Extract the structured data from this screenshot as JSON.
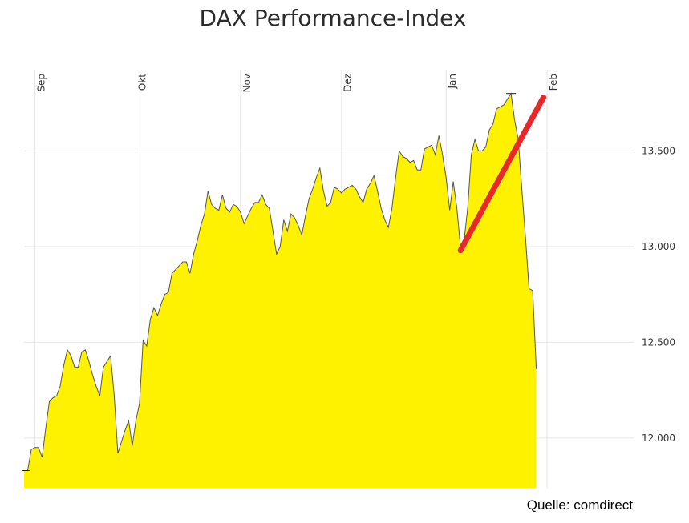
{
  "chart_data": {
    "type": "area",
    "title": "DAX Performance-Index",
    "source": "Quelle: comdirect",
    "x_month_labels": [
      "Sep",
      "Okt",
      "Nov",
      "Dez",
      "Jan",
      "Feb"
    ],
    "y_tick_labels": [
      {
        "value": 12000,
        "label": "12.000"
      },
      {
        "value": 12500,
        "label": "12.500"
      },
      {
        "value": 13000,
        "label": "13.000"
      },
      {
        "value": 13500,
        "label": "13.500"
      }
    ],
    "ylim": [
      11740,
      13920
    ],
    "xlim": [
      0,
      169
    ],
    "grid": true,
    "colors": {
      "fill": "#FFF200",
      "line": "#555555",
      "trend": "#E8282B",
      "grid": "#E6E6E6"
    },
    "month_start_index": [
      3,
      31,
      60,
      88,
      117,
      145
    ],
    "series": [
      {
        "values": [
          11830,
          11830,
          11940,
          11950,
          11950,
          11900,
          12050,
          12190,
          12210,
          12220,
          12270,
          12380,
          12460,
          12430,
          12370,
          12370,
          12450,
          12460,
          12400,
          12330,
          12270,
          12220,
          12370,
          12400,
          12430,
          12220,
          11920,
          11980,
          12040,
          12090,
          11960,
          12090,
          12180,
          12510,
          12480,
          12620,
          12680,
          12640,
          12700,
          12750,
          12760,
          12860,
          12880,
          12900,
          12920,
          12920,
          12860,
          12960,
          13030,
          13110,
          13170,
          13290,
          13220,
          13200,
          13190,
          13270,
          13200,
          13180,
          13220,
          13210,
          13180,
          13120,
          13160,
          13200,
          13230,
          13230,
          13270,
          13220,
          13200,
          13080,
          12960,
          13000,
          13140,
          13080,
          13170,
          13150,
          13110,
          13060,
          13160,
          13250,
          13300,
          13360,
          13410,
          13290,
          13210,
          13230,
          13310,
          13300,
          13280,
          13300,
          13310,
          13320,
          13300,
          13260,
          13230,
          13300,
          13330,
          13370,
          13290,
          13200,
          13140,
          13100,
          13200,
          13360,
          13500,
          13470,
          13460,
          13440,
          13450,
          13400,
          13400,
          13510,
          13520,
          13530,
          13480,
          13580,
          13480,
          13360,
          13190,
          13340,
          13200,
          13000,
          13030,
          13200,
          13480,
          13560,
          13500,
          13500,
          13520,
          13610,
          13640,
          13720,
          13730,
          13740,
          13770,
          13800,
          13660,
          13560,
          13300,
          13050,
          12780,
          12770,
          12360
        ]
      }
    ],
    "trend_line": {
      "start": {
        "x": 121,
        "y": 12980
      },
      "end": {
        "x": 144,
        "y": 13780
      }
    }
  }
}
